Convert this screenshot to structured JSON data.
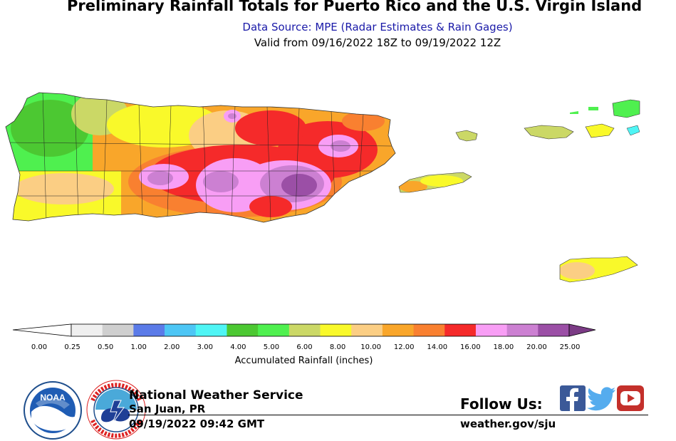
{
  "header": {
    "title": "Preliminary Rainfall Totals for Puerto Rico and the U.S. Virgin Island",
    "subtitle": "Data Source: MPE (Radar Estimates & Rain Gages)",
    "valid": "Valid from 09/16/2022 18Z to 09/19/2022 12Z"
  },
  "colorbar": {
    "label": "Accumulated Rainfall (inches)",
    "ticks": [
      "0.00",
      "0.25",
      "0.50",
      "1.00",
      "2.00",
      "3.00",
      "4.00",
      "5.00",
      "6.00",
      "8.00",
      "10.00",
      "12.00",
      "14.00",
      "16.00",
      "18.00",
      "20.00",
      "25.00"
    ],
    "colors": [
      "#efefef",
      "#cfcfcf",
      "#5b7be8",
      "#4dc6f5",
      "#4ff5f5",
      "#4cc832",
      "#4ff04f",
      "#cbd866",
      "#f9f92a",
      "#fbce84",
      "#f9a62a",
      "#f98030",
      "#f52a2a",
      "#f89ef5",
      "#cc80d2",
      "#9b4fa6"
    ],
    "under_color": "#ffffff",
    "over_color": "#7b3b85"
  },
  "footer": {
    "agency": "National Weather Service",
    "office": "San Juan, PR",
    "timestamp": "09/19/2022 09:42 GMT",
    "follow_label": "Follow Us:",
    "website": "weather.gov/sju",
    "noaa_text": "NOAA"
  }
}
